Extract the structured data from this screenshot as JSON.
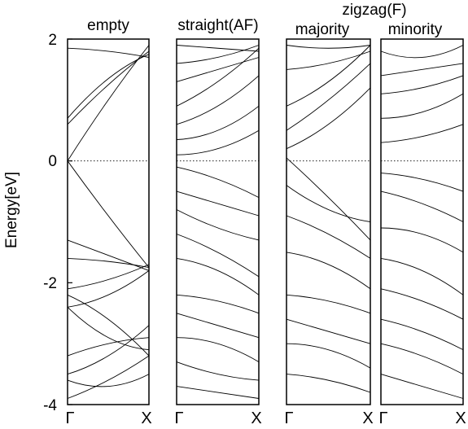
{
  "chart_data": {
    "type": "line",
    "group_title": "zigzag(F)",
    "ylabel": "Energy[eV]",
    "ylim": [
      -4,
      2
    ],
    "yticks": [
      "2",
      "0",
      "-2",
      "-4"
    ],
    "fermi_level": 0,
    "panels": [
      {
        "title": "empty",
        "kticks": [
          "Γ",
          "X"
        ],
        "series": [
          {
            "x": [
              0,
              0.5,
              1
            ],
            "y": [
              0.0,
              1.0,
              1.9
            ]
          },
          {
            "x": [
              0,
              0.5,
              1
            ],
            "y": [
              0.0,
              -0.9,
              -1.75
            ]
          },
          {
            "x": [
              0,
              0.5,
              1
            ],
            "y": [
              0.6,
              1.25,
              1.8
            ]
          },
          {
            "x": [
              0,
              0.5,
              1
            ],
            "y": [
              0.7,
              1.35,
              1.75
            ]
          },
          {
            "x": [
              0,
              0.5,
              1
            ],
            "y": [
              1.85,
              1.8,
              1.7
            ]
          },
          {
            "x": [
              0,
              0.5,
              1
            ],
            "y": [
              -1.3,
              -1.55,
              -1.8
            ]
          },
          {
            "x": [
              0,
              0.5,
              1
            ],
            "y": [
              -1.6,
              -1.65,
              -1.75
            ]
          },
          {
            "x": [
              0,
              0.5,
              1
            ],
            "y": [
              -2.1,
              -1.95,
              -1.7
            ]
          },
          {
            "x": [
              0,
              0.5,
              1
            ],
            "y": [
              -2.2,
              -2.6,
              -3.2
            ]
          },
          {
            "x": [
              0,
              0.5,
              1
            ],
            "y": [
              -2.4,
              -2.2,
              -1.8
            ]
          },
          {
            "x": [
              0,
              0.5,
              1
            ],
            "y": [
              -2.4,
              -2.9,
              -3.1
            ]
          },
          {
            "x": [
              0,
              0.5,
              1
            ],
            "y": [
              -3.2,
              -3.0,
              -2.9
            ]
          },
          {
            "x": [
              0,
              0.5,
              1
            ],
            "y": [
              -3.5,
              -3.2,
              -2.7
            ]
          },
          {
            "x": [
              0,
              0.5,
              1
            ],
            "y": [
              -3.6,
              -3.7,
              -3.5
            ]
          },
          {
            "x": [
              0,
              0.5,
              1
            ],
            "y": [
              -3.9,
              -3.6,
              -3.2
            ]
          }
        ]
      },
      {
        "title": "straight(AF)",
        "kticks": [
          "Γ",
          "X"
        ],
        "series": [
          {
            "x": [
              0,
              0.5,
              1
            ],
            "y": [
              1.9,
              1.85,
              1.8
            ]
          },
          {
            "x": [
              0,
              0.5,
              1
            ],
            "y": [
              1.6,
              1.7,
              1.9
            ]
          },
          {
            "x": [
              0,
              0.5,
              1
            ],
            "y": [
              1.3,
              1.5,
              1.7
            ]
          },
          {
            "x": [
              0,
              0.5,
              1
            ],
            "y": [
              0.9,
              1.3,
              1.85
            ]
          },
          {
            "x": [
              0,
              0.5,
              1
            ],
            "y": [
              0.6,
              0.9,
              1.4
            ]
          },
          {
            "x": [
              0,
              0.5,
              1
            ],
            "y": [
              0.35,
              0.5,
              0.9
            ]
          },
          {
            "x": [
              0,
              0.5,
              1
            ],
            "y": [
              0.1,
              0.2,
              0.5
            ]
          },
          {
            "x": [
              0,
              0.5,
              1
            ],
            "y": [
              -0.1,
              -0.3,
              -0.6
            ]
          },
          {
            "x": [
              0,
              0.5,
              1
            ],
            "y": [
              -0.5,
              -0.7,
              -0.9
            ]
          },
          {
            "x": [
              0,
              0.5,
              1
            ],
            "y": [
              -0.8,
              -1.1,
              -1.3
            ]
          },
          {
            "x": [
              0,
              0.5,
              1
            ],
            "y": [
              -1.2,
              -1.5,
              -1.9
            ]
          },
          {
            "x": [
              0,
              0.5,
              1
            ],
            "y": [
              -1.6,
              -1.8,
              -2.2
            ]
          },
          {
            "x": [
              0,
              0.5,
              1
            ],
            "y": [
              -2.2,
              -2.3,
              -2.5
            ]
          },
          {
            "x": [
              0,
              0.5,
              1
            ],
            "y": [
              -2.5,
              -2.7,
              -2.9
            ]
          },
          {
            "x": [
              0,
              0.5,
              1
            ],
            "y": [
              -2.9,
              -3.0,
              -3.3
            ]
          },
          {
            "x": [
              0,
              0.5,
              1
            ],
            "y": [
              -3.3,
              -3.5,
              -3.6
            ]
          },
          {
            "x": [
              0,
              0.5,
              1
            ],
            "y": [
              -3.7,
              -3.8,
              -3.9
            ]
          }
        ]
      },
      {
        "title": "majority",
        "kticks": [
          "Γ",
          "X"
        ],
        "series": [
          {
            "x": [
              0,
              0.5,
              1
            ],
            "y": [
              1.9,
              1.85,
              1.9
            ]
          },
          {
            "x": [
              0,
              0.5,
              1
            ],
            "y": [
              1.5,
              1.6,
              1.8
            ]
          },
          {
            "x": [
              0,
              0.5,
              1
            ],
            "y": [
              0.9,
              1.3,
              1.9
            ]
          },
          {
            "x": [
              0,
              0.5,
              1
            ],
            "y": [
              0.5,
              1.0,
              1.6
            ]
          },
          {
            "x": [
              0,
              0.5,
              1
            ],
            "y": [
              0.2,
              0.6,
              1.2
            ]
          },
          {
            "x": [
              0,
              0.5,
              1
            ],
            "y": [
              0.05,
              -0.6,
              -1.3
            ]
          },
          {
            "x": [
              0,
              0.5,
              1
            ],
            "y": [
              -0.4,
              -0.8,
              -1.0
            ]
          },
          {
            "x": [
              0,
              0.5,
              1
            ],
            "y": [
              -0.9,
              -1.2,
              -1.6
            ]
          },
          {
            "x": [
              0,
              0.5,
              1
            ],
            "y": [
              -1.5,
              -1.7,
              -2.1
            ]
          },
          {
            "x": [
              0,
              0.5,
              1
            ],
            "y": [
              -2.2,
              -2.3,
              -2.5
            ]
          },
          {
            "x": [
              0,
              0.5,
              1
            ],
            "y": [
              -2.6,
              -2.8,
              -3.0
            ]
          },
          {
            "x": [
              0,
              0.5,
              1
            ],
            "y": [
              -3.0,
              -3.1,
              -3.4
            ]
          },
          {
            "x": [
              0,
              0.5,
              1
            ],
            "y": [
              -3.5,
              -3.6,
              -3.8
            ]
          }
        ]
      },
      {
        "title": "minority",
        "kticks": [
          "Γ",
          "X"
        ],
        "series": [
          {
            "x": [
              0,
              0.5,
              1
            ],
            "y": [
              1.8,
              1.7,
              1.9
            ]
          },
          {
            "x": [
              0,
              0.5,
              1
            ],
            "y": [
              1.4,
              1.5,
              1.6
            ]
          },
          {
            "x": [
              0,
              0.5,
              1
            ],
            "y": [
              1.1,
              1.2,
              1.4
            ]
          },
          {
            "x": [
              0,
              0.5,
              1
            ],
            "y": [
              0.7,
              0.8,
              1.1
            ]
          },
          {
            "x": [
              0,
              0.5,
              1
            ],
            "y": [
              0.3,
              0.4,
              0.6
            ]
          },
          {
            "x": [
              0,
              0.5,
              1
            ],
            "y": [
              -0.2,
              -0.3,
              -0.5
            ]
          },
          {
            "x": [
              0,
              0.5,
              1
            ],
            "y": [
              -0.5,
              -0.7,
              -1.0
            ]
          },
          {
            "x": [
              0,
              0.5,
              1
            ],
            "y": [
              -1.1,
              -1.2,
              -1.5
            ]
          },
          {
            "x": [
              0,
              0.5,
              1
            ],
            "y": [
              -1.6,
              -1.8,
              -2.2
            ]
          },
          {
            "x": [
              0,
              0.5,
              1
            ],
            "y": [
              -2.1,
              -2.3,
              -2.6
            ]
          },
          {
            "x": [
              0,
              0.5,
              1
            ],
            "y": [
              -2.6,
              -2.8,
              -3.1
            ]
          },
          {
            "x": [
              0,
              0.5,
              1
            ],
            "y": [
              -3.0,
              -3.2,
              -3.5
            ]
          },
          {
            "x": [
              0,
              0.5,
              1
            ],
            "y": [
              -3.5,
              -3.7,
              -3.9
            ]
          }
        ]
      }
    ]
  }
}
